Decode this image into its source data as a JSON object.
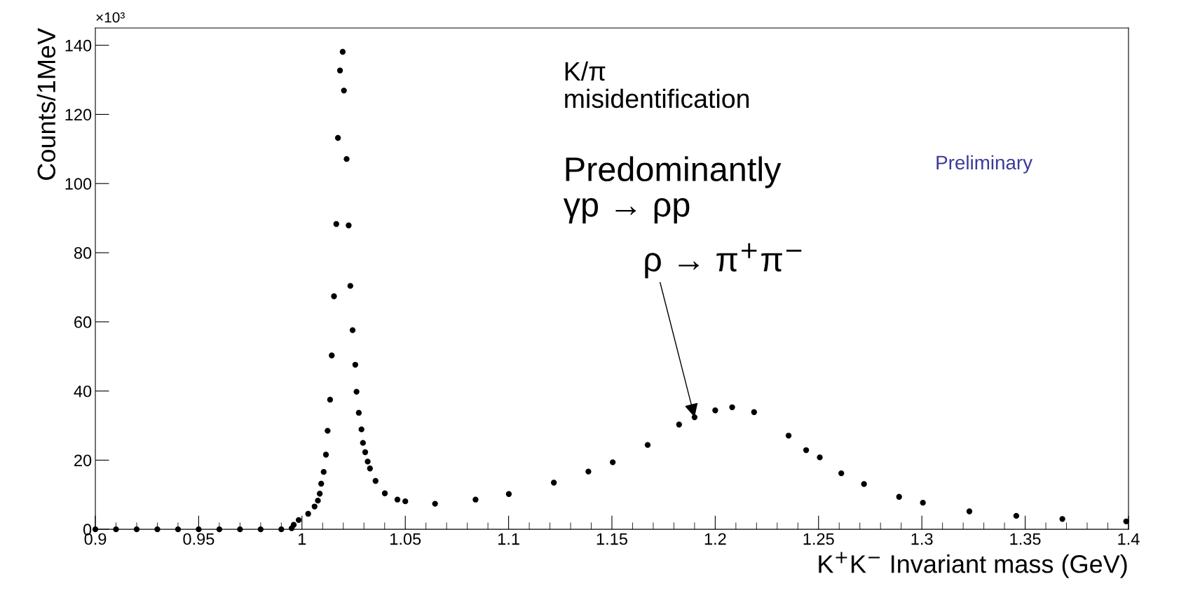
{
  "chart_data": {
    "type": "scatter",
    "xlabel": "K$^{+}$K$^{−}$ Invariant mass (GeV)",
    "ylabel": "Counts/1MeV",
    "x": [
      0.9,
      0.91,
      0.92,
      0.93,
      0.94,
      0.95,
      0.96,
      0.97,
      0.98,
      0.99,
      0.995,
      0.996,
      0.9984,
      1.003,
      1.0061,
      1.0077,
      1.0086,
      1.0093,
      1.0105,
      1.0116,
      1.0124,
      1.0136,
      1.0144,
      1.0155,
      1.0166,
      1.0174,
      1.0184,
      1.0197,
      1.0203,
      1.0216,
      1.0226,
      1.0234,
      1.0245,
      1.0258,
      1.0264,
      1.0275,
      1.0288,
      1.0295,
      1.0306,
      1.0318,
      1.0329,
      1.0356,
      1.0401,
      1.0462,
      1.05,
      1.0644,
      1.084,
      1.1001,
      1.1219,
      1.1386,
      1.1504,
      1.1673,
      1.1825,
      1.19,
      1.2,
      1.2082,
      1.2188,
      1.2355,
      1.244,
      1.2506,
      1.261,
      1.272,
      1.289,
      1.3005,
      1.323,
      1.3457,
      1.368,
      1.3989
    ],
    "values": [
      0,
      0,
      0,
      0,
      0,
      0,
      0,
      0,
      0,
      0,
      0.3,
      1.3,
      2.7,
      4.5,
      6.6,
      8.3,
      10.3,
      13.2,
      16.6,
      21.6,
      28.5,
      37.5,
      50.3,
      67.4,
      88.3,
      113.2,
      132.7,
      138.1,
      126.9,
      107.1,
      87.9,
      70.4,
      57.6,
      47.6,
      39.8,
      33.7,
      28.9,
      25.0,
      22.3,
      19.6,
      17.6,
      14.0,
      10.4,
      8.6,
      8.1,
      7.4,
      8.6,
      10.2,
      13.5,
      16.7,
      19.4,
      24.4,
      30.3,
      32.4,
      34.4,
      35.3,
      33.9,
      27.1,
      22.9,
      20.8,
      16.2,
      13.1,
      9.4,
      7.7,
      5.2,
      3.9,
      3.0,
      2.3
    ],
    "color": "#000000",
    "marker": "circle",
    "xlim": [
      0.9,
      1.4
    ],
    "xticks": [
      0.9,
      0.95,
      1,
      1.05,
      1.1,
      1.15,
      1.2,
      1.25,
      1.3,
      1.35,
      1.4
    ],
    "ylim": [
      0,
      145
    ],
    "yticks": [
      0,
      20,
      40,
      60,
      80,
      100,
      120,
      140
    ],
    "grid": false,
    "legend": false,
    "annotations": [
      "×10³",
      "K/π\nmisidentification",
      "Predominantly\nγp → ρp",
      {
        "text": "ρ → π$^{+}$π$^{−}$",
        "x": 1.19,
        "y": 32.4
      },
      "Preliminary"
    ]
  }
}
